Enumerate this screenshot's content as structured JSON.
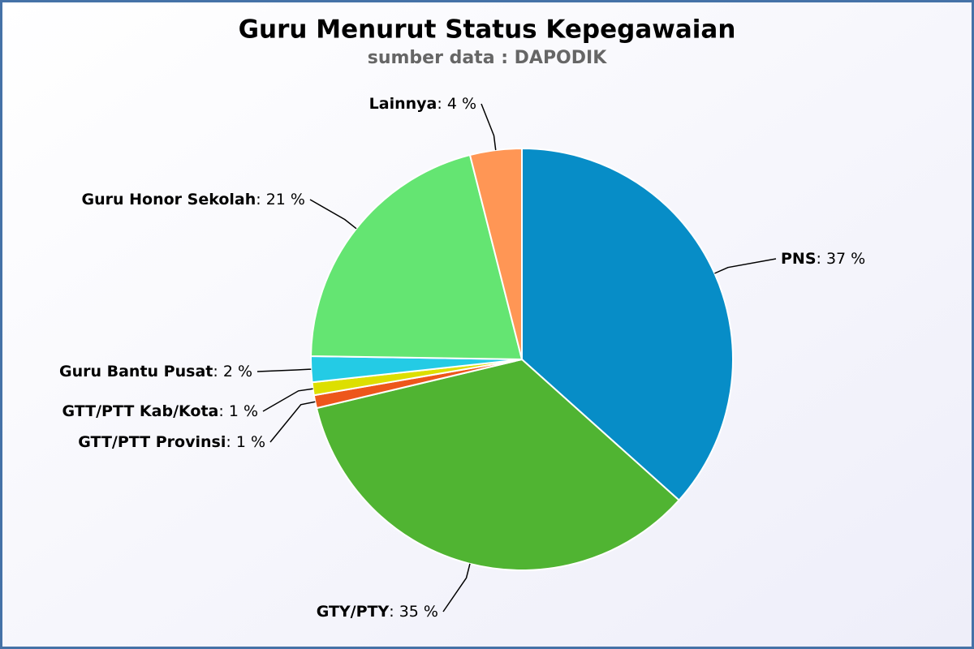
{
  "chart_data": {
    "type": "pie",
    "title": "Guru Menurut Status Kepegawaian",
    "subtitle": "sumber data : DAPODIK",
    "categories": [
      "PNS",
      "GTY/PTY",
      "GTT/PTT Provinsi",
      "GTT/PTT Kab/Kota",
      "Guru Bantu Pusat",
      "Guru Honor Sekolah",
      "Lainnya"
    ],
    "values": [
      37,
      35,
      1,
      1,
      2,
      21,
      4
    ],
    "value_labels": [
      "37 %",
      "35 %",
      "1 %",
      "1 %",
      "2 %",
      "21 %",
      "4 %"
    ],
    "label_separator": ": ",
    "colors": [
      "#078dc7",
      "#50b432",
      "#ed561b",
      "#dddf00",
      "#24cbe5",
      "#64e572",
      "#ff9655"
    ]
  }
}
